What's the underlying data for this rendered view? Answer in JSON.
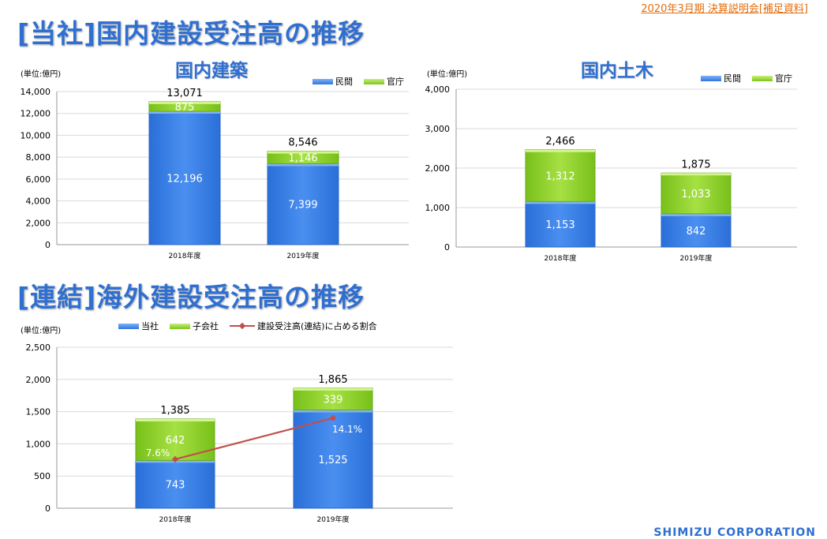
{
  "header": {
    "doc_note": "2020年3月期  決算説明会[補足資料]",
    "title1": "[当社]国内建設受注高の推移",
    "title2": "[連結]海外建設受注高の推移"
  },
  "logo": {
    "text": "SHIMIZU CORPORATION"
  },
  "colors": {
    "blue": "#3b7fe6",
    "green": "#8dd02a",
    "line": "#c0504d"
  },
  "chart_data": [
    {
      "type": "bar",
      "stacked": true,
      "title": "国内建築",
      "unit_label": "(単位:億円)",
      "categories": [
        "2018年度",
        "2019年度"
      ],
      "series": [
        {
          "name": "民間",
          "values": [
            12196,
            7399
          ],
          "labels": [
            "12,196",
            "7,399"
          ]
        },
        {
          "name": "官庁",
          "values": [
            875,
            1146
          ],
          "labels": [
            "875",
            "1,146"
          ]
        }
      ],
      "totals": [
        "13,071",
        "8,546"
      ],
      "ylim": [
        0,
        14000
      ],
      "yticks": [
        "0",
        "2,000",
        "4,000",
        "6,000",
        "8,000",
        "10,000",
        "12,000",
        "14,000"
      ],
      "legend_position": "top-right"
    },
    {
      "type": "bar",
      "stacked": true,
      "title": "国内土木",
      "unit_label": "(単位:億円)",
      "categories": [
        "2018年度",
        "2019年度"
      ],
      "series": [
        {
          "name": "民間",
          "values": [
            1153,
            842
          ],
          "labels": [
            "1,153",
            "842"
          ]
        },
        {
          "name": "官庁",
          "values": [
            1312,
            1033
          ],
          "labels": [
            "1,312",
            "1,033"
          ]
        }
      ],
      "totals": [
        "2,466",
        "1,875"
      ],
      "ylim": [
        0,
        4000
      ],
      "yticks": [
        "0",
        "1,000",
        "2,000",
        "3,000",
        "4,000"
      ],
      "legend_position": "top-right"
    },
    {
      "type": "bar",
      "stacked": true,
      "title": "",
      "unit_label": "(単位:億円)",
      "categories": [
        "2018年度",
        "2019年度"
      ],
      "series": [
        {
          "name": "当社",
          "values": [
            743,
            1525
          ],
          "labels": [
            "743",
            "1,525"
          ]
        },
        {
          "name": "子会社",
          "values": [
            642,
            339
          ],
          "labels": [
            "642",
            "339"
          ]
        }
      ],
      "totals": [
        "1,385",
        "1,865"
      ],
      "line": {
        "name": "建設受注高(連結)に占める割合",
        "values": [
          7.6,
          14.1
        ],
        "labels": [
          "7.6%",
          "14.1%"
        ],
        "plotted_at": [
          760,
          1400
        ]
      },
      "ylim": [
        0,
        2500
      ],
      "yticks": [
        "0",
        "500",
        "1,000",
        "1,500",
        "2,000",
        "2,500"
      ],
      "legend_position": "top"
    }
  ]
}
